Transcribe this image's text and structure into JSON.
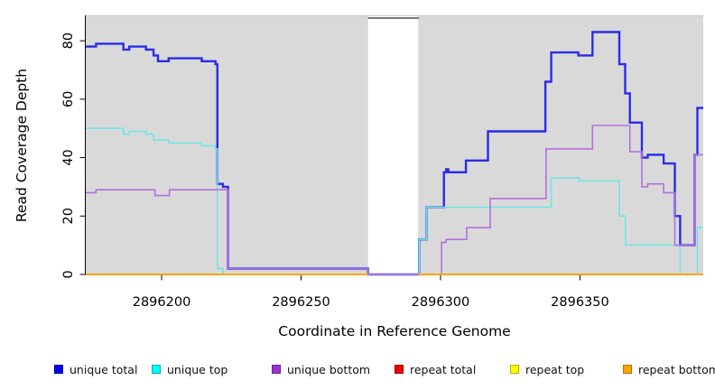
{
  "chart_data": {
    "type": "line",
    "subtype": "step-coverage",
    "title": "",
    "xlabel": "Coordinate in Reference Genome",
    "ylabel": "Read Coverage Depth",
    "x_range": [
      2896172.8,
      2896394.2
    ],
    "ylim": [
      0,
      88.4
    ],
    "x_ticks": [
      2896200,
      2896250,
      2896300,
      2896350
    ],
    "y_ticks": [
      0,
      20,
      40,
      60,
      80
    ],
    "grid": "off",
    "legend_position": "bottom",
    "plot_bg": "#d9d9d9",
    "gap_region": [
      2896274,
      2896292
    ],
    "gap_border_color": "#787878",
    "series": [
      {
        "id": "unique-total",
        "name": "unique total",
        "color": "#2b2be8",
        "legend_color": "#0000ee",
        "legend_border": "#0000a0",
        "width": 2.4,
        "segments": [
          [
            [
              2896172.8,
              78
            ],
            [
              2896176.5,
              79
            ],
            [
              2896186.3,
              77
            ],
            [
              2896188.4,
              78
            ],
            [
              2896194.4,
              77
            ],
            [
              2896197.1,
              75
            ],
            [
              2896198.7,
              73
            ],
            [
              2896202.5,
              74
            ],
            [
              2896214.4,
              73
            ],
            [
              2896219.3,
              72
            ],
            [
              2896220,
              31
            ],
            [
              2896222,
              30
            ],
            [
              2896223.8,
              2
            ],
            [
              2896274,
              0
            ],
            [
              2896292.3,
              12
            ],
            [
              2896295,
              23
            ],
            [
              2896301.2,
              35
            ],
            [
              2896302,
              36
            ],
            [
              2896302.8,
              35
            ],
            [
              2896309.1,
              39
            ],
            [
              2896317,
              49
            ],
            [
              2896337.6,
              66
            ],
            [
              2896339.7,
              76
            ],
            [
              2896349.4,
              75
            ],
            [
              2896354.5,
              83
            ],
            [
              2896364.1,
              72
            ],
            [
              2896366.2,
              62
            ],
            [
              2896367.9,
              52
            ],
            [
              2896372.2,
              40
            ],
            [
              2896374.3,
              41
            ],
            [
              2896380,
              38
            ],
            [
              2896384,
              20
            ],
            [
              2896385.9,
              10
            ],
            [
              2896391.1,
              41
            ],
            [
              2896392.1,
              57
            ],
            [
              2896394.2,
              57
            ]
          ]
        ]
      },
      {
        "id": "unique-top",
        "name": "unique top",
        "color": "#70e5e8",
        "legend_color": "#00ffff",
        "legend_border": "#00a8a8",
        "width": 1.6,
        "segments": [
          [
            [
              2896172.8,
              50
            ],
            [
              2896186.3,
              48
            ],
            [
              2896188.4,
              49
            ],
            [
              2896194.4,
              48
            ],
            [
              2896197.1,
              46
            ],
            [
              2896202.5,
              45
            ],
            [
              2896214.4,
              44
            ],
            [
              2896219.3,
              43
            ],
            [
              2896220,
              2
            ],
            [
              2896222,
              0
            ],
            [
              2896292.3,
              12
            ],
            [
              2896295,
              23
            ],
            [
              2896339.7,
              33
            ],
            [
              2896349.7,
              32
            ],
            [
              2896364.1,
              20
            ],
            [
              2896366.3,
              10
            ],
            [
              2896385.9,
              0
            ],
            [
              2896392.1,
              16
            ],
            [
              2896394.2,
              16
            ]
          ]
        ]
      },
      {
        "id": "unique-bottom",
        "name": "unique bottom",
        "color": "#b370dc",
        "legend_color": "#9a32cd",
        "legend_border": "#6e1f96",
        "width": 1.6,
        "segments": [
          [
            [
              2896172.8,
              28
            ],
            [
              2896176.5,
              29
            ],
            [
              2896197.6,
              27
            ],
            [
              2896202.8,
              29
            ],
            [
              2896223.8,
              2
            ],
            [
              2896274,
              0
            ],
            [
              2896300.4,
              11
            ],
            [
              2896302,
              12
            ],
            [
              2896309.4,
              16
            ],
            [
              2896317.8,
              26
            ],
            [
              2896337.8,
              43
            ],
            [
              2896354.5,
              51
            ],
            [
              2896367.9,
              42
            ],
            [
              2896372.2,
              30
            ],
            [
              2896374.3,
              31
            ],
            [
              2896380,
              28
            ],
            [
              2896384,
              10
            ],
            [
              2896391.1,
              41
            ],
            [
              2896394.2,
              41
            ]
          ]
        ]
      },
      {
        "id": "repeat-total",
        "name": "repeat total",
        "color": "#dd0000",
        "legend_color": "#ee0000",
        "legend_border": "#980000",
        "width": 1.6,
        "segments": [
          [
            [
              2896172.8,
              0
            ],
            [
              2896274,
              0
            ]
          ],
          [
            [
              2896292,
              0
            ],
            [
              2896394.2,
              0
            ]
          ]
        ]
      },
      {
        "id": "repeat-top",
        "name": "repeat top",
        "color": "#ffff00",
        "legend_color": "#ffff00",
        "legend_border": "#b0b000",
        "width": 1.6,
        "segments": [
          [
            [
              2896172.8,
              0
            ],
            [
              2896274,
              0
            ]
          ],
          [
            [
              2896292,
              0
            ],
            [
              2896394.2,
              0
            ]
          ]
        ]
      },
      {
        "id": "repeat-bottom",
        "name": "repeat bottom",
        "color": "#ffa500",
        "legend_color": "#ffa500",
        "legend_border": "#b07400",
        "width": 1.8,
        "segments": [
          [
            [
              2896172.8,
              0
            ],
            [
              2896274,
              0
            ]
          ],
          [
            [
              2896292,
              0
            ],
            [
              2896394.2,
              0
            ]
          ]
        ]
      }
    ]
  }
}
